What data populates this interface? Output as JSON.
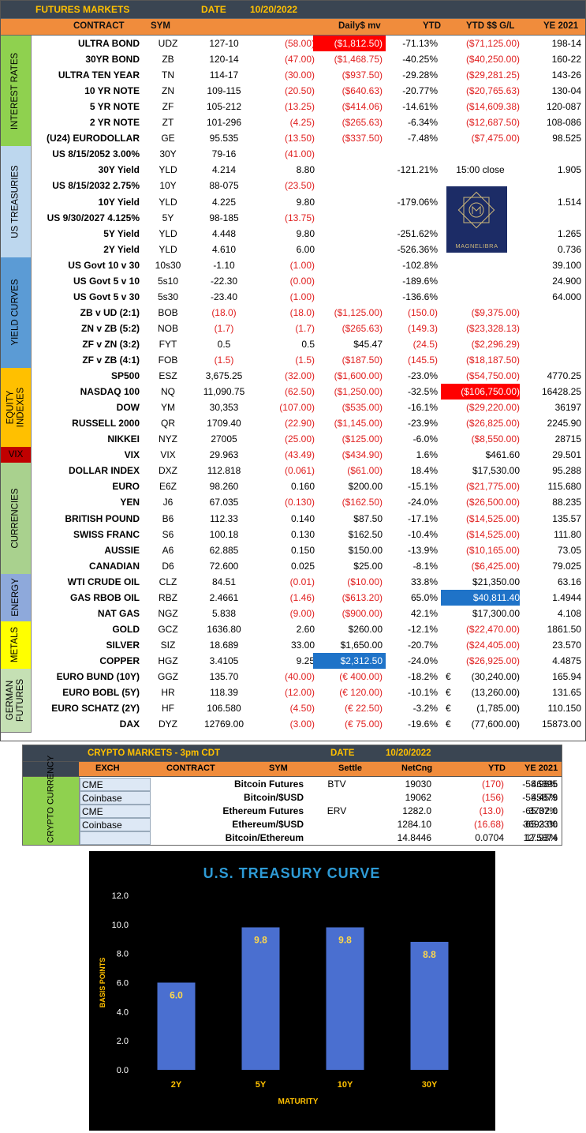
{
  "futures": {
    "title": "FUTURES MARKETS",
    "date_label": "DATE",
    "date": "10/20/2022",
    "headers": {
      "contract": "CONTRACT",
      "sym": "SYM",
      "daily": "Daily$ mv",
      "ytd": "YTD",
      "ytd_gl": "YTD $$ G/L",
      "ye": "YE 2021"
    },
    "sections": [
      {
        "label": "INTEREST RATES",
        "color": "#8fd14f"
      },
      {
        "label": "US TREASURIES",
        "color": "#bdd7ee"
      },
      {
        "label": "YIELD CURVES",
        "color": "#5b9bd5"
      },
      {
        "label": "EQUITY INDEXES",
        "color": "#ffc000"
      },
      {
        "label": "VIX",
        "color": "#c00000"
      },
      {
        "label": "CURRENCIES",
        "color": "#a9d18e"
      },
      {
        "label": "ENERGY",
        "color": "#8ea9db"
      },
      {
        "label": "METALS",
        "color": "#ffff00"
      },
      {
        "label": "GERMAN FUTURES",
        "color": "#c5e0b4"
      }
    ],
    "rows": [
      {
        "name": "ULTRA BOND",
        "sym": "UDZ",
        "last": "127-10",
        "chg": "(58.00)",
        "daily": "($1,812.50)",
        "ytd": "-71.13%",
        "ytd_gl": "($71,125.00)",
        "ye": "198-14"
      },
      {
        "name": "30YR BOND",
        "sym": "ZB",
        "last": "120-14",
        "chg": "(47.00)",
        "daily": "($1,468.75)",
        "ytd": "-40.25%",
        "ytd_gl": "($40,250.00)",
        "ye": "160-22"
      },
      {
        "name": "ULTRA TEN YEAR",
        "sym": "TN",
        "last": "114-17",
        "chg": "(30.00)",
        "daily": "($937.50)",
        "ytd": "-29.28%",
        "ytd_gl": "($29,281.25)",
        "ye": "143-26"
      },
      {
        "name": "10 YR NOTE",
        "sym": "ZN",
        "last": "109-115",
        "chg": "(20.50)",
        "daily": "($640.63)",
        "ytd": "-20.77%",
        "ytd_gl": "($20,765.63)",
        "ye": "130-04"
      },
      {
        "name": "5 YR NOTE",
        "sym": "ZF",
        "last": "105-212",
        "chg": "(13.25)",
        "daily": "($414.06)",
        "ytd": "-14.61%",
        "ytd_gl": "($14,609.38)",
        "ye": "120-087"
      },
      {
        "name": "2 YR NOTE",
        "sym": "ZT",
        "last": "101-296",
        "chg": "(4.25)",
        "daily": "($265.63)",
        "ytd": "-6.34%",
        "ytd_gl": "($12,687.50)",
        "ye": "108-086"
      },
      {
        "name": "(U24) EURODOLLAR",
        "sym": "GE",
        "last": "95.535",
        "chg": "(13.50)",
        "daily": "($337.50)",
        "ytd": "-7.48%",
        "ytd_gl": "($7,475.00)",
        "ye": "98.525"
      },
      {
        "name": "US 8/15/2052 3.00%",
        "sym": "30Y",
        "last": "79-16",
        "chg": "(41.00)",
        "daily": "",
        "ytd": "",
        "ytd_gl": "",
        "ye": ""
      },
      {
        "name": "30Y Yield",
        "sym": "YLD",
        "last": "4.214",
        "chg": "8.80",
        "daily": "",
        "ytd": "-121.21%",
        "ytd_gl": "15:00 close",
        "ye": "1.905"
      },
      {
        "name": "US 8/15/2032 2.75%",
        "sym": "10Y",
        "last": "88-075",
        "chg": "(23.50)",
        "daily": "",
        "ytd": "",
        "ytd_gl": "",
        "ye": ""
      },
      {
        "name": "10Y Yield",
        "sym": "YLD",
        "last": "4.225",
        "chg": "9.80",
        "daily": "",
        "ytd": "-179.06%",
        "ytd_gl": "",
        "ye": "1.514"
      },
      {
        "name": "US 9/30/2027 4.125%",
        "sym": "5Y",
        "last": "98-185",
        "chg": "(13.75)",
        "daily": "",
        "ytd": "",
        "ytd_gl": "",
        "ye": ""
      },
      {
        "name": "5Y Yield",
        "sym": "YLD",
        "last": "4.448",
        "chg": "9.80",
        "daily": "",
        "ytd": "-251.62%",
        "ytd_gl": "",
        "ye": "1.265"
      },
      {
        "name": "2Y Yield",
        "sym": "YLD",
        "last": "4.610",
        "chg": "6.00",
        "daily": "",
        "ytd": "-526.36%",
        "ytd_gl": "",
        "ye": "0.736"
      },
      {
        "name": "US Govt 10 v 30",
        "sym": "10s30",
        "last": "-1.10",
        "chg": "(1.00)",
        "daily": "",
        "ytd": "-102.8%",
        "ytd_gl": "",
        "ye": "39.100"
      },
      {
        "name": "US Govt 5 v 10",
        "sym": "5s10",
        "last": "-22.30",
        "chg": "(0.00)",
        "daily": "",
        "ytd": "-189.6%",
        "ytd_gl": "",
        "ye": "24.900"
      },
      {
        "name": "US Govt 5 v 30",
        "sym": "5s30",
        "last": "-23.40",
        "chg": "(1.00)",
        "daily": "",
        "ytd": "-136.6%",
        "ytd_gl": "",
        "ye": "64.000"
      },
      {
        "name": "ZB v UD (2:1)",
        "sym": "BOB",
        "last": "(18.0)",
        "chg": "(18.0)",
        "daily": "($1,125.00)",
        "ytd": "(150.0)",
        "ytd_gl": "($9,375.00)",
        "ye": ""
      },
      {
        "name": "ZN v ZB (5:2)",
        "sym": "NOB",
        "last": "(1.7)",
        "chg": "(1.7)",
        "daily": "($265.63)",
        "ytd": "(149.3)",
        "ytd_gl": "($23,328.13)",
        "ye": ""
      },
      {
        "name": "ZF v ZN (3:2)",
        "sym": "FYT",
        "last": "0.5",
        "chg": "0.5",
        "daily": "$45.47",
        "ytd": "(24.5)",
        "ytd_gl": "($2,296.29)",
        "ye": ""
      },
      {
        "name": "ZF v ZB (4:1)",
        "sym": "FOB",
        "last": "(1.5)",
        "chg": "(1.5)",
        "daily": "($187.50)",
        "ytd": "(145.5)",
        "ytd_gl": "($18,187.50)",
        "ye": ""
      },
      {
        "name": "SP500",
        "sym": "ESZ",
        "last": "3,675.25",
        "chg": "(32.00)",
        "daily": "($1,600.00)",
        "ytd": "-23.0%",
        "ytd_gl": "($54,750.00)",
        "ye": "4770.25"
      },
      {
        "name": "NASDAQ 100",
        "sym": "NQ",
        "last": "11,090.75",
        "chg": "(62.50)",
        "daily": "($1,250.00)",
        "ytd": "-32.5%",
        "ytd_gl": "($106,750.00)",
        "ye": "16428.25"
      },
      {
        "name": "DOW",
        "sym": "YM",
        "last": "30,353",
        "chg": "(107.00)",
        "daily": "($535.00)",
        "ytd": "-16.1%",
        "ytd_gl": "($29,220.00)",
        "ye": "36197"
      },
      {
        "name": "RUSSELL 2000",
        "sym": "QR",
        "last": "1709.40",
        "chg": "(22.90)",
        "daily": "($1,145.00)",
        "ytd": "-23.9%",
        "ytd_gl": "($26,825.00)",
        "ye": "2245.90"
      },
      {
        "name": "NIKKEI",
        "sym": "NYZ",
        "last": "27005",
        "chg": "(25.00)",
        "daily": "($125.00)",
        "ytd": "-6.0%",
        "ytd_gl": "($8,550.00)",
        "ye": "28715"
      },
      {
        "name": "VIX",
        "sym": "VIX",
        "last": "29.963",
        "chg": "(43.49)",
        "daily": "($434.90)",
        "ytd": "1.6%",
        "ytd_gl": "$461.60",
        "ye": "29.501"
      },
      {
        "name": "DOLLAR INDEX",
        "sym": "DXZ",
        "last": "112.818",
        "chg": "(0.061)",
        "daily": "($61.00)",
        "ytd": "18.4%",
        "ytd_gl": "$17,530.00",
        "ye": "95.288"
      },
      {
        "name": "EURO",
        "sym": "E6Z",
        "last": "98.260",
        "chg": "0.160",
        "daily": "$200.00",
        "ytd": "-15.1%",
        "ytd_gl": "($21,775.00)",
        "ye": "115.680"
      },
      {
        "name": "YEN",
        "sym": "J6",
        "last": "67.035",
        "chg": "(0.130)",
        "daily": "($162.50)",
        "ytd": "-24.0%",
        "ytd_gl": "($26,500.00)",
        "ye": "88.235"
      },
      {
        "name": "BRITISH POUND",
        "sym": "B6",
        "last": "112.33",
        "chg": "0.140",
        "daily": "$87.50",
        "ytd": "-17.1%",
        "ytd_gl": "($14,525.00)",
        "ye": "135.57"
      },
      {
        "name": "SWISS FRANC",
        "sym": "S6",
        "last": "100.18",
        "chg": "0.130",
        "daily": "$162.50",
        "ytd": "-10.4%",
        "ytd_gl": "($14,525.00)",
        "ye": "111.80"
      },
      {
        "name": "AUSSIE",
        "sym": "A6",
        "last": "62.885",
        "chg": "0.150",
        "daily": "$150.00",
        "ytd": "-13.9%",
        "ytd_gl": "($10,165.00)",
        "ye": "73.05"
      },
      {
        "name": "CANADIAN",
        "sym": "D6",
        "last": "72.600",
        "chg": "0.025",
        "daily": "$25.00",
        "ytd": "-8.1%",
        "ytd_gl": "($6,425.00)",
        "ye": "79.025"
      },
      {
        "name": "WTI CRUDE OIL",
        "sym": "CLZ",
        "last": "84.51",
        "chg": "(0.01)",
        "daily": "($10.00)",
        "ytd": "33.8%",
        "ytd_gl": "$21,350.00",
        "ye": "63.16"
      },
      {
        "name": "GAS RBOB OIL",
        "sym": "RBZ",
        "last": "2.4661",
        "chg": "(1.46)",
        "daily": "($613.20)",
        "ytd": "65.0%",
        "ytd_gl": "$40,811.40",
        "ye": "1.4944"
      },
      {
        "name": "NAT GAS",
        "sym": "NGZ",
        "last": "5.838",
        "chg": "(9.00)",
        "daily": "($900.00)",
        "ytd": "42.1%",
        "ytd_gl": "$17,300.00",
        "ye": "4.108"
      },
      {
        "name": "GOLD",
        "sym": "GCZ",
        "last": "1636.80",
        "chg": "2.60",
        "daily": "$260.00",
        "ytd": "-12.1%",
        "ytd_gl": "($22,470.00)",
        "ye": "1861.50"
      },
      {
        "name": "SILVER",
        "sym": "SIZ",
        "last": "18.689",
        "chg": "33.00",
        "daily": "$1,650.00",
        "ytd": "-20.7%",
        "ytd_gl": "($24,405.00)",
        "ye": "23.570"
      },
      {
        "name": "COPPER",
        "sym": "HGZ",
        "last": "3.4105",
        "chg": "9.25",
        "daily": "$2,312.50",
        "ytd": "-24.0%",
        "ytd_gl": "($26,925.00)",
        "ye": "4.4875"
      },
      {
        "name": "EURO BUND (10Y)",
        "sym": "GGZ",
        "last": "135.70",
        "chg": "(40.00)",
        "daily": "(€ 400.00)",
        "ytd": "-18.2%",
        "euro": "€",
        "ytd_gl": "(30,240.00)",
        "ye": "165.94"
      },
      {
        "name": "EURO BOBL (5Y)",
        "sym": "HR",
        "last": "118.39",
        "chg": "(12.00)",
        "daily": "(€ 120.00)",
        "ytd": "-10.1%",
        "euro": "€",
        "ytd_gl": "(13,260.00)",
        "ye": "131.65"
      },
      {
        "name": "EURO SCHATZ (2Y)",
        "sym": "HF",
        "last": "106.580",
        "chg": "(4.50)",
        "daily": "(€ 22.50)",
        "ytd": "-3.2%",
        "euro": "€",
        "ytd_gl": "(1,785.00)",
        "ye": "110.150"
      },
      {
        "name": "DAX",
        "sym": "DYZ",
        "last": "12769.00",
        "chg": "(3.00)",
        "daily": "(€ 75.00)",
        "ytd": "-19.6%",
        "euro": "€",
        "ytd_gl": "(77,600.00)",
        "ye": "15873.00"
      }
    ],
    "highlights": {
      "daily_red": [
        "ULTRA BOND"
      ],
      "daily_blue": [
        "COPPER"
      ],
      "ytd_gl_red": [
        "NASDAQ 100"
      ],
      "ytd_gl_blue": [
        "GAS RBOB OIL"
      ]
    },
    "logo_text": "MAGNELIBRA"
  },
  "crypto": {
    "title": "CRYPTO MARKETS - 3pm CDT",
    "date_label": "DATE",
    "date": "10/20/2022",
    "section_label": "CRYPTO CURRENCY",
    "headers": {
      "exch": "EXCH",
      "contract": "CONTRACT",
      "sym": "SYM",
      "settle": "Settle",
      "netcng": "NetCng",
      "ytd": "YTD",
      "ye": "YE 2021"
    },
    "rows": [
      {
        "exch": "CME",
        "contract": "Bitcoin Futures",
        "sym": "BTV",
        "settle": "19030",
        "netcng": "(170)",
        "ytd": "-58.98%",
        "ye": "46395"
      },
      {
        "exch": "Coinbase",
        "contract": "Bitcoin/$USD",
        "sym": "",
        "settle": "19062",
        "netcng": "(156)",
        "ytd": "-58.45%",
        "ye": "45879"
      },
      {
        "exch": "CME",
        "contract": "Ethereum Futures",
        "sym": "ERV",
        "settle": "1282.0",
        "netcng": "(13.0)",
        "ytd": "-65.37%",
        "ye": "3702.0"
      },
      {
        "exch": "Coinbase",
        "contract": "Ethereum/$USD",
        "sym": "",
        "settle": "1284.10",
        "netcng": "(16.68)",
        "ytd": "-65.23%",
        "ye": "3693.00"
      },
      {
        "exch": "",
        "contract": "Bitcoin/Ethereum",
        "sym": "",
        "settle": "14.8446",
        "netcng": "0.0704",
        "ytd": "17.93%",
        "ye": "12.5874"
      }
    ]
  },
  "chart_data": {
    "type": "bar",
    "title": "U.S. TREASURY CURVE",
    "xlabel": "MATURITY",
    "ylabel": "BASIS POINTS",
    "categories": [
      "2Y",
      "5Y",
      "10Y",
      "30Y"
    ],
    "values": [
      6.0,
      9.8,
      9.8,
      8.8
    ],
    "data_labels": [
      "6.0",
      "9.8",
      "9.8",
      "8.8"
    ],
    "ylim": [
      0,
      12
    ],
    "yticks": [
      "0.0",
      "2.0",
      "4.0",
      "6.0",
      "8.0",
      "10.0",
      "12.0"
    ],
    "bar_color": "#4a6fd0",
    "background": "#000000",
    "title_color": "#2e9bd6",
    "label_color": "#ffc000",
    "grid": false,
    "legend": false
  }
}
